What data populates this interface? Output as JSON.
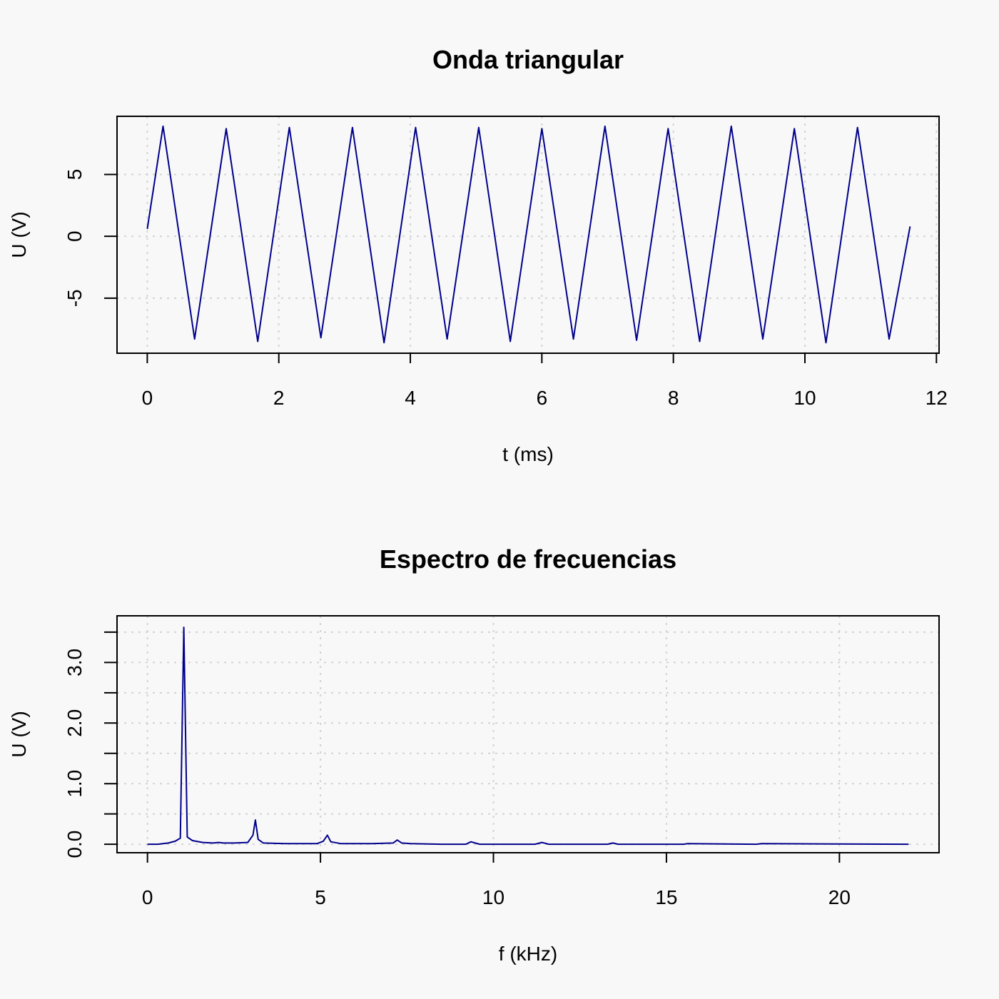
{
  "chart_data": [
    {
      "type": "line",
      "title": "Onda triangular",
      "xlabel": "t (ms)",
      "ylabel": "U (V)",
      "xlim": [
        -0.46,
        12.04
      ],
      "ylim": [
        -9.45,
        9.7
      ],
      "xticks": [
        0,
        2,
        4,
        6,
        8,
        10,
        12
      ],
      "xtick_labels": [
        "0",
        "2",
        "4",
        "6",
        "8",
        "10",
        "12"
      ],
      "yticks": [
        -5,
        0,
        5
      ],
      "ytick_labels": [
        "-5",
        "0",
        "5"
      ],
      "grid": true,
      "color": "#00008b",
      "x": [
        0,
        0.24,
        0.72,
        1.2,
        1.68,
        2.16,
        2.64,
        3.12,
        3.6,
        4.08,
        4.56,
        5.04,
        5.52,
        6.0,
        6.48,
        6.96,
        7.44,
        7.92,
        8.4,
        8.88,
        9.36,
        9.84,
        10.32,
        10.8,
        11.28,
        11.6
      ],
      "y": [
        0.6,
        8.9,
        -8.3,
        8.7,
        -8.5,
        8.8,
        -8.2,
        8.8,
        -8.6,
        8.8,
        -8.3,
        8.8,
        -8.5,
        8.7,
        -8.3,
        8.9,
        -8.4,
        8.7,
        -8.5,
        8.9,
        -8.3,
        8.7,
        -8.6,
        8.8,
        -8.3,
        0.8
      ]
    },
    {
      "type": "line",
      "title": "Espectro de frecuencias",
      "xlabel": "f (kHz)",
      "ylabel": "U (V)",
      "xlim": [
        -0.88,
        22.88
      ],
      "ylim": [
        -0.14,
        3.77
      ],
      "xticks": [
        0,
        5,
        10,
        15,
        20
      ],
      "xtick_labels": [
        "0",
        "5",
        "10",
        "15",
        "20"
      ],
      "yticks": [
        0.0,
        0.5,
        1.0,
        1.5,
        2.0,
        2.5,
        3.0,
        3.5
      ],
      "ytick_labels": [
        "0.0",
        "",
        "1.0",
        "",
        "2.0",
        "",
        "3.0",
        ""
      ],
      "grid": true,
      "color": "#00008b",
      "x": [
        0,
        0.3,
        0.6,
        0.8,
        0.95,
        1.05,
        1.15,
        1.3,
        1.6,
        1.9,
        2.05,
        2.2,
        2.5,
        2.9,
        3.05,
        3.12,
        3.2,
        3.35,
        4.0,
        4.9,
        5.08,
        5.2,
        5.3,
        5.6,
        6.5,
        7.1,
        7.22,
        7.35,
        7.6,
        8.5,
        9.2,
        9.35,
        9.6,
        11.2,
        11.4,
        11.6,
        13.3,
        13.45,
        13.6,
        15.5,
        15.6,
        17.6,
        17.75,
        22.0
      ],
      "y": [
        0.0,
        0.0,
        0.02,
        0.05,
        0.1,
        3.58,
        0.12,
        0.06,
        0.03,
        0.02,
        0.03,
        0.02,
        0.02,
        0.03,
        0.15,
        0.4,
        0.08,
        0.02,
        0.01,
        0.01,
        0.05,
        0.15,
        0.04,
        0.01,
        0.01,
        0.02,
        0.07,
        0.02,
        0.01,
        0.0,
        0.0,
        0.04,
        0.0,
        0.0,
        0.03,
        0.0,
        0.0,
        0.02,
        0.0,
        0.0,
        0.01,
        0.0,
        0.01,
        0.0
      ]
    }
  ]
}
